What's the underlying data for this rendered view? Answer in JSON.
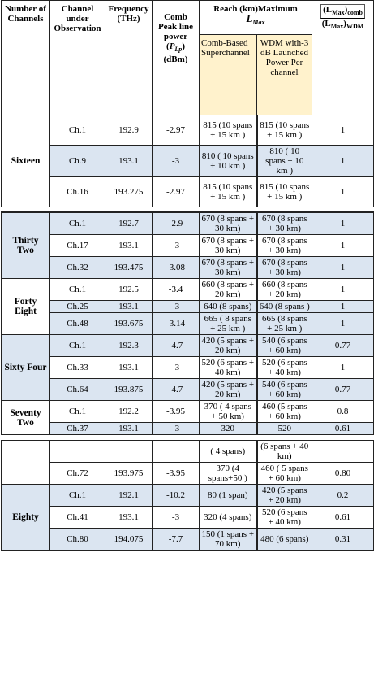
{
  "header": {
    "channels": "Number of Channels",
    "channel": "Channel under Observation",
    "frequency": "Frequency (THz)",
    "power": {
      "label": "Comb Peak line power",
      "open": "(",
      "symbol": "P",
      "sub": "Lp",
      "close": ")",
      "unit": "(dBm)"
    },
    "reach": {
      "label": "Reach (km)Maximum",
      "symbol": "L",
      "sub": "Max",
      "comb": "Comb-Based Superchannel",
      "wdm": "WDM with-3 dB Launched Power Per channel"
    },
    "ratio": {
      "numerator": {
        "open": "(L",
        "sub": "Max",
        "close": ")",
        "tail": "comb"
      },
      "denominator": {
        "open": "(L",
        "sub": "Max",
        "close": ")",
        "tail": "WDM"
      }
    }
  },
  "tables": [
    {
      "groups": [
        {
          "label": "Sixteen",
          "rows": [
            {
              "channel": "Ch.1",
              "frequency": "192.9",
              "power": "-2.97",
              "comb": "815 (10 spans + 15 km )",
              "wdm": "815 (10 spans + 15 km )",
              "ratio": "1"
            },
            {
              "channel": "Ch.9",
              "frequency": "193.1",
              "power": "-3",
              "comb": "810 ( 10 spans + 10 km )",
              "wdm": "810 ( 10 spans + 10 km )",
              "ratio": "1",
              "fill": "#dbe5f1"
            },
            {
              "channel": "Ch.16",
              "frequency": "193.275",
              "power": "-2.97",
              "comb": "815 (10 spans + 15 km )",
              "wdm": "815 (10 spans + 15 km )",
              "ratio": "1"
            }
          ]
        }
      ]
    },
    {
      "groups": [
        {
          "label": "Thirty Two",
          "fill": "#dbe5f1",
          "rows": [
            {
              "channel": "Ch.1",
              "frequency": "192.7",
              "power": "-2.9",
              "comb": "670 (8 spans + 30 km)",
              "wdm": "670 (8 spans + 30 km)",
              "ratio": "1",
              "fill": "#dbe5f1"
            },
            {
              "channel": "Ch.17",
              "frequency": "193.1",
              "power": "-3",
              "comb": "670 (8 spans + 30 km)",
              "wdm": "670 (8 spans + 30 km)",
              "ratio": "1"
            },
            {
              "channel": "Ch.32",
              "frequency": "193.475",
              "power": "-3.08",
              "comb": "670 (8 spans + 30 km)",
              "wdm": "670 (8 spans + 30 km)",
              "ratio": "1",
              "fill": "#dbe5f1"
            }
          ]
        },
        {
          "label": "Forty Eight",
          "rows": [
            {
              "channel": "Ch.1",
              "frequency": "192.5",
              "power": "-3.4",
              "comb": "660 (8 spans + 20 km)",
              "wdm": "660 (8 spans + 20 km)",
              "ratio": "1"
            },
            {
              "channel": "Ch.25",
              "frequency": "193.1",
              "power": "-3",
              "comb": "640 (8 spans)",
              "wdm": "640 (8 spans )",
              "ratio": "1",
              "fill": "#dbe5f1"
            },
            {
              "channel": "Ch.48",
              "frequency": "193.675",
              "power": "-3.14",
              "comb": "665 ( 8 spans + 25 km )",
              "wdm": "665 (8 spans + 25 km )",
              "ratio": "1",
              "fill": "#dbe5f1"
            }
          ]
        },
        {
          "label": "Sixty Four",
          "fill": "#dbe5f1",
          "rows": [
            {
              "channel": "Ch.1",
              "frequency": "192.3",
              "power": "-4.7",
              "comb": "420 (5 spans + 20 km)",
              "wdm": "540 (6 spans + 60 km)",
              "ratio": "0.77",
              "fill": "#dbe5f1"
            },
            {
              "channel": "Ch.33",
              "frequency": "193.1",
              "power": "-3",
              "comb": "520 (6 spans + 40 km)",
              "wdm": "520 (6 spans + 40 km)",
              "ratio": "1"
            },
            {
              "channel": "Ch.64",
              "frequency": "193.875",
              "power": "-4.7",
              "comb": "420 (5 spans + 20 km)",
              "wdm": "540 (6 spans + 60 km)",
              "ratio": "0.77",
              "fill": "#dbe5f1"
            }
          ]
        },
        {
          "label": "Seventy Two",
          "rows": [
            {
              "channel": "Ch.1",
              "frequency": "192.2",
              "power": "-3.95",
              "comb": "370 ( 4 spans + 50 km)",
              "wdm": "460 (5 spans + 60 km)",
              "ratio": "0.8"
            },
            {
              "channel": "Ch.37",
              "frequency": "193.1",
              "power": "-3",
              "comb": "320",
              "wdm": "520",
              "ratio": "0.61",
              "fill": "#dbe5f1"
            }
          ]
        }
      ]
    },
    {
      "groups": [
        {
          "rows": [
            {
              "comb": "( 4 spans)",
              "wdm": "(6 spans + 40 km)"
            },
            {
              "channel": "Ch.72",
              "frequency": "193.975",
              "power": "-3.95",
              "comb": "370 (4 spans+50 )",
              "wdm": "460 ( 5 spans + 60 km)",
              "ratio": "0.80"
            }
          ]
        },
        {
          "label": "Eighty",
          "fill": "#dbe5f1",
          "rows": [
            {
              "channel": "Ch.1",
              "frequency": "192.1",
              "power": "-10.2",
              "comb": "80 (1 span)",
              "wdm": "420 (5 spans + 20 km)",
              "ratio": "0.2",
              "fill": "#dbe5f1"
            },
            {
              "channel": "Ch.41",
              "frequency": "193.1",
              "power": "-3",
              "comb": "320 (4 spans)",
              "wdm": "520 (6 spans + 40 km)",
              "ratio": "0.61"
            },
            {
              "channel": "Ch.80",
              "frequency": "194.075",
              "power": "-7.7",
              "comb": "150 (1 spans + 70 km)",
              "wdm": "480 (6 spans)",
              "ratio": "0.31",
              "fill": "#dbe5f1"
            }
          ]
        }
      ]
    }
  ]
}
